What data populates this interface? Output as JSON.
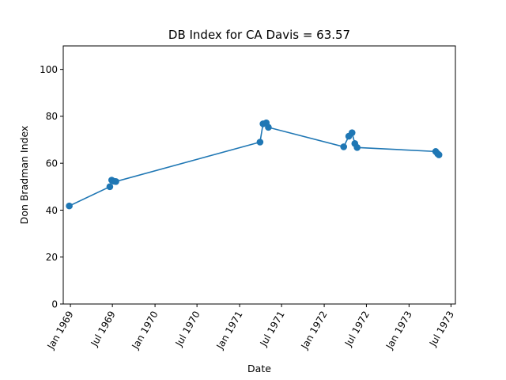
{
  "chart_data": {
    "type": "line",
    "title": "DB Index for CA Davis = 63.57",
    "xlabel": "Date",
    "ylabel": "Don Bradman Index",
    "ylim": [
      0,
      110
    ],
    "xlim": [
      "1968-12-01",
      "1973-07-20"
    ],
    "yticks": [
      0,
      20,
      40,
      60,
      80,
      100
    ],
    "xticks": [
      {
        "date": "1969-01-01",
        "label": "Jan 1969"
      },
      {
        "date": "1969-07-01",
        "label": "Jul 1969"
      },
      {
        "date": "1970-01-01",
        "label": "Jan 1970"
      },
      {
        "date": "1970-07-01",
        "label": "Jul 1970"
      },
      {
        "date": "1971-01-01",
        "label": "Jan 1971"
      },
      {
        "date": "1971-07-01",
        "label": "Jul 1971"
      },
      {
        "date": "1972-01-01",
        "label": "Jan 1972"
      },
      {
        "date": "1972-07-01",
        "label": "Jul 1972"
      },
      {
        "date": "1973-01-01",
        "label": "Jan 1973"
      },
      {
        "date": "1973-07-01",
        "label": "Jul 1973"
      }
    ],
    "color": "#1f77b4",
    "grid": false,
    "series": [
      {
        "points": [
          {
            "x": "1968-12-27",
            "y": 41.8
          },
          {
            "x": "1969-06-20",
            "y": 50.0
          },
          {
            "x": "1969-06-28",
            "y": 52.8
          },
          {
            "x": "1969-07-08",
            "y": 52.3
          },
          {
            "x": "1969-07-16",
            "y": 52.2
          },
          {
            "x": "1971-03-30",
            "y": 69.0
          },
          {
            "x": "1971-04-12",
            "y": 76.8
          },
          {
            "x": "1971-04-26",
            "y": 77.2
          },
          {
            "x": "1971-05-05",
            "y": 75.3
          },
          {
            "x": "1972-03-25",
            "y": 67.0
          },
          {
            "x": "1972-04-16",
            "y": 71.5
          },
          {
            "x": "1972-04-30",
            "y": 73.0
          },
          {
            "x": "1972-05-12",
            "y": 68.4
          },
          {
            "x": "1972-05-22",
            "y": 66.7
          },
          {
            "x": "1973-04-26",
            "y": 65.0
          },
          {
            "x": "1973-05-04",
            "y": 64.1
          },
          {
            "x": "1973-05-10",
            "y": 63.57
          }
        ]
      }
    ]
  }
}
